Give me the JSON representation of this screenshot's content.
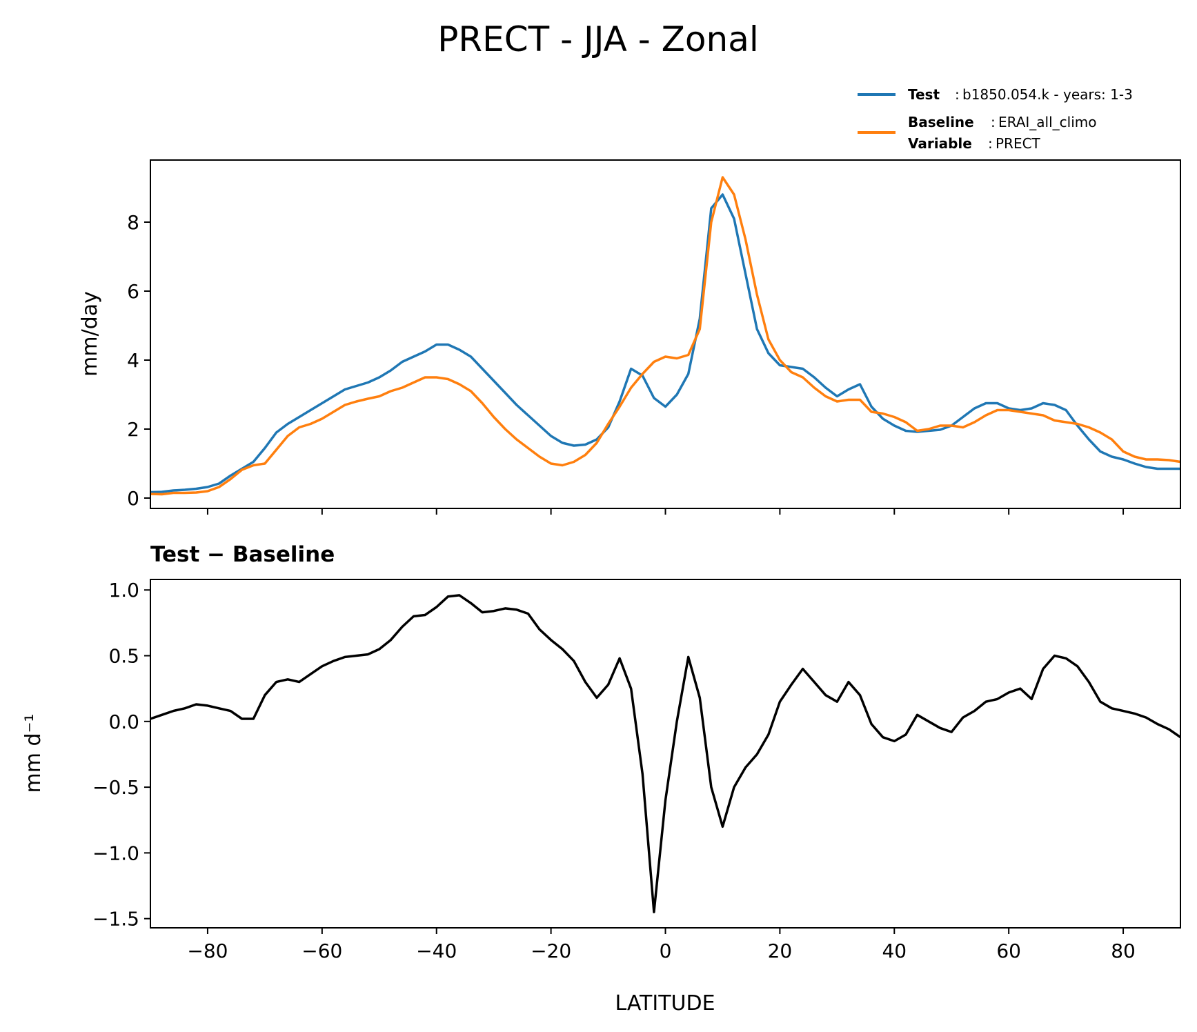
{
  "chart_data": [
    {
      "type": "line",
      "title": "PRECT - JJA - Zonal",
      "xlabel": "",
      "ylabel": "mm/day",
      "xlim": [
        -90,
        90
      ],
      "ylim": [
        -0.3,
        9.8
      ],
      "yticks": [
        0,
        2,
        4,
        6,
        8
      ],
      "xticks": [
        -80,
        -60,
        -40,
        -20,
        0,
        20,
        40,
        60,
        80
      ],
      "legend": {
        "position": "top-right",
        "entries": [
          {
            "series": "Test",
            "key": "Test",
            "value": "b1850.054.k - years: 1-3"
          },
          {
            "series": "Baseline",
            "key": "Baseline",
            "value": "ERAI_all_climo"
          }
        ],
        "extra": {
          "key": "Variable",
          "value": "PRECT"
        }
      },
      "x": [
        -90,
        -88,
        -86,
        -84,
        -82,
        -80,
        -78,
        -76,
        -74,
        -72,
        -70,
        -68,
        -66,
        -64,
        -62,
        -60,
        -58,
        -56,
        -54,
        -52,
        -50,
        -48,
        -46,
        -44,
        -42,
        -40,
        -38,
        -36,
        -34,
        -32,
        -30,
        -28,
        -26,
        -24,
        -22,
        -20,
        -18,
        -16,
        -14,
        -12,
        -10,
        -8,
        -6,
        -4,
        -2,
        0,
        2,
        4,
        6,
        8,
        10,
        12,
        14,
        16,
        18,
        20,
        22,
        24,
        26,
        28,
        30,
        32,
        34,
        36,
        38,
        40,
        42,
        44,
        46,
        48,
        50,
        52,
        54,
        56,
        58,
        60,
        62,
        64,
        66,
        68,
        70,
        72,
        74,
        76,
        78,
        80,
        82,
        84,
        86,
        88,
        90
      ],
      "series": [
        {
          "name": "Test",
          "color": "#1f77b4",
          "values": [
            0.17,
            0.18,
            0.22,
            0.24,
            0.27,
            0.32,
            0.42,
            0.65,
            0.85,
            1.05,
            1.45,
            1.9,
            2.15,
            2.35,
            2.55,
            2.75,
            2.95,
            3.15,
            3.25,
            3.35,
            3.5,
            3.7,
            3.95,
            4.1,
            4.25,
            4.45,
            4.45,
            4.3,
            4.1,
            3.75,
            3.4,
            3.05,
            2.7,
            2.4,
            2.1,
            1.8,
            1.6,
            1.52,
            1.55,
            1.7,
            2.05,
            2.8,
            3.75,
            3.55,
            2.9,
            2.65,
            3.0,
            3.6,
            5.2,
            8.4,
            8.8,
            8.1,
            6.5,
            4.9,
            4.2,
            3.85,
            3.8,
            3.75,
            3.5,
            3.2,
            2.95,
            3.15,
            3.3,
            2.65,
            2.3,
            2.1,
            1.95,
            1.92,
            1.95,
            1.98,
            2.1,
            2.35,
            2.6,
            2.75,
            2.75,
            2.6,
            2.55,
            2.6,
            2.75,
            2.7,
            2.55,
            2.1,
            1.7,
            1.35,
            1.2,
            1.12,
            1.0,
            0.9,
            0.85,
            0.85,
            0.85
          ]
        },
        {
          "name": "Baseline",
          "color": "#ff7f0e",
          "values": [
            0.12,
            0.11,
            0.15,
            0.15,
            0.16,
            0.2,
            0.32,
            0.55,
            0.82,
            0.95,
            1.0,
            1.4,
            1.8,
            2.05,
            2.15,
            2.3,
            2.5,
            2.7,
            2.8,
            2.88,
            2.95,
            3.1,
            3.2,
            3.35,
            3.5,
            3.5,
            3.45,
            3.3,
            3.1,
            2.75,
            2.35,
            2.0,
            1.7,
            1.45,
            1.2,
            1.0,
            0.95,
            1.05,
            1.25,
            1.6,
            2.15,
            2.65,
            3.2,
            3.6,
            3.95,
            4.1,
            4.05,
            4.15,
            4.9,
            8.0,
            9.3,
            8.8,
            7.5,
            5.9,
            4.6,
            4.0,
            3.65,
            3.5,
            3.2,
            2.95,
            2.8,
            2.85,
            2.85,
            2.5,
            2.45,
            2.35,
            2.2,
            1.95,
            2.0,
            2.1,
            2.1,
            2.05,
            2.2,
            2.4,
            2.55,
            2.55,
            2.5,
            2.45,
            2.4,
            2.25,
            2.2,
            2.15,
            2.05,
            1.9,
            1.7,
            1.35,
            1.2,
            1.12,
            1.12,
            1.1,
            1.05
          ]
        }
      ]
    },
    {
      "type": "line",
      "title": "Test − Baseline",
      "xlabel": "LATITUDE",
      "ylabel": "mm d⁻¹",
      "xlim": [
        -90,
        90
      ],
      "ylim": [
        -1.57,
        1.08
      ],
      "yticks": [
        -1.5,
        -1.0,
        -0.5,
        0.0,
        0.5,
        1.0
      ],
      "ytick_labels": [
        "−1.5",
        "−1.0",
        "−0.5",
        "0.0",
        "0.5",
        "1.0"
      ],
      "xticks": [
        -80,
        -60,
        -40,
        -20,
        0,
        20,
        40,
        60,
        80
      ],
      "xtick_labels": [
        "−80",
        "−60",
        "−40",
        "−20",
        "0",
        "20",
        "40",
        "60",
        "80"
      ],
      "x": [
        -90,
        -88,
        -86,
        -84,
        -82,
        -80,
        -78,
        -76,
        -74,
        -72,
        -70,
        -68,
        -66,
        -64,
        -62,
        -60,
        -58,
        -56,
        -54,
        -52,
        -50,
        -48,
        -46,
        -44,
        -42,
        -40,
        -38,
        -36,
        -34,
        -32,
        -30,
        -28,
        -26,
        -24,
        -22,
        -20,
        -18,
        -16,
        -14,
        -12,
        -10,
        -8,
        -6,
        -4,
        -2,
        0,
        2,
        4,
        6,
        8,
        10,
        12,
        14,
        16,
        18,
        20,
        22,
        24,
        26,
        28,
        30,
        32,
        34,
        36,
        38,
        40,
        42,
        44,
        46,
        48,
        50,
        52,
        54,
        56,
        58,
        60,
        62,
        64,
        66,
        68,
        70,
        72,
        74,
        76,
        78,
        80,
        82,
        84,
        86,
        88,
        90
      ],
      "series": [
        {
          "name": "Test − Baseline",
          "color": "#000000",
          "values": [
            0.02,
            0.05,
            0.08,
            0.1,
            0.13,
            0.12,
            0.1,
            0.08,
            0.02,
            0.02,
            0.2,
            0.3,
            0.32,
            0.3,
            0.36,
            0.42,
            0.46,
            0.49,
            0.5,
            0.51,
            0.55,
            0.62,
            0.72,
            0.8,
            0.81,
            0.87,
            0.95,
            0.96,
            0.9,
            0.83,
            0.84,
            0.86,
            0.85,
            0.82,
            0.7,
            0.62,
            0.55,
            0.46,
            0.3,
            0.18,
            0.28,
            0.48,
            0.25,
            -0.4,
            -1.45,
            -0.6,
            0.0,
            0.49,
            0.18,
            -0.5,
            -0.8,
            -0.5,
            -0.35,
            -0.25,
            -0.1,
            0.15,
            0.28,
            0.4,
            0.3,
            0.2,
            0.15,
            0.3,
            0.2,
            -0.02,
            -0.12,
            -0.15,
            -0.1,
            0.05,
            0.0,
            -0.05,
            -0.08,
            0.03,
            0.08,
            0.15,
            0.17,
            0.22,
            0.25,
            0.17,
            0.4,
            0.5,
            0.48,
            0.42,
            0.3,
            0.15,
            0.1,
            0.08,
            0.06,
            0.03,
            -0.02,
            -0.06,
            -0.12
          ]
        }
      ]
    }
  ]
}
